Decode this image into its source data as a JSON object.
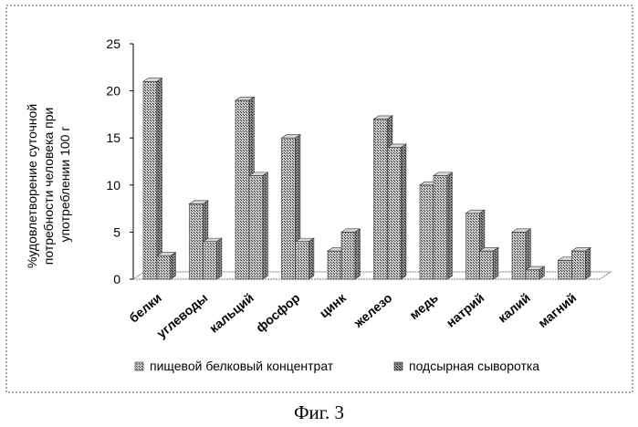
{
  "chart_data": {
    "type": "bar",
    "ylabel_lines": [
      "%удовлетворение суточной",
      "потребности человека при",
      "употреблении 100 г"
    ],
    "categories": [
      "белки",
      "углеводы",
      "кальций",
      "фосфор",
      "цинк",
      "железо",
      "медь",
      "натрий",
      "калий",
      "магний"
    ],
    "series": [
      {
        "name": "пищевой белковый концентрат",
        "values": [
          21,
          8,
          19,
          15,
          3,
          17,
          10,
          7,
          5,
          2
        ]
      },
      {
        "name": "подсырная сыворотка",
        "values": [
          2.5,
          4,
          11,
          4,
          5,
          14,
          11,
          3,
          1,
          3
        ]
      }
    ],
    "ylim": [
      0,
      25
    ],
    "yticks": [
      0,
      5,
      10,
      15,
      20,
      25
    ],
    "grid": false,
    "legend_position": "bottom",
    "colors": {
      "bar_front": "#9a9a9a",
      "bar_top": "#c8c8c8",
      "bar_side": "#5a5a5a",
      "axis": "#000000"
    }
  },
  "caption": "Фиг. 3"
}
